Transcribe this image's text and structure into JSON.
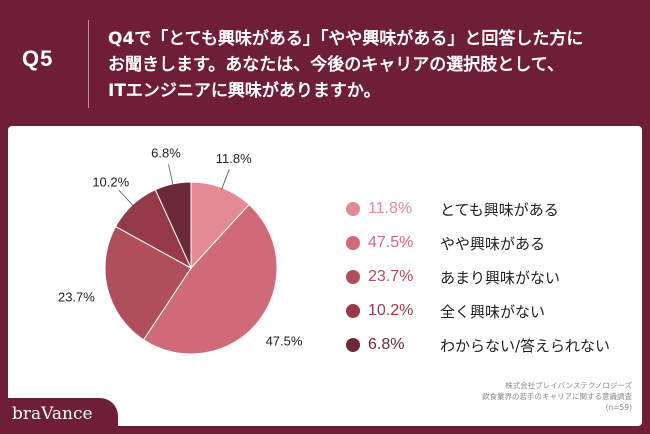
{
  "header": {
    "q_label": "Q5",
    "question_lines": [
      "Q4で「とても興味がある」「やや興味がある」と回答した方に",
      "お聞きします。あなたは、今後のキャリアの選択肢として、",
      "ITエンジニアに興味がありますか。"
    ]
  },
  "chart_data": {
    "type": "pie",
    "categories": [
      "とても興味がある",
      "やや興味がある",
      "あまり興味がない",
      "全く興味がない",
      "わからない/答えられない"
    ],
    "values": [
      11.8,
      47.5,
      23.7,
      10.2,
      6.8
    ],
    "value_labels": [
      "11.8%",
      "47.5%",
      "23.7%",
      "10.2%",
      "6.8%"
    ],
    "colors": [
      "#e38a92",
      "#cf6b78",
      "#b04e5c",
      "#963a4a",
      "#6b2a36"
    ],
    "start_angle_deg": 0,
    "direction": "clockwise",
    "legend_position": "right"
  },
  "source": {
    "lines": [
      "株式会社ブレイバンステクノロジーズ",
      "飲食業界の若手のキャリアに関する意識調査",
      "(n=59)"
    ]
  },
  "brand": {
    "name": "braVance"
  }
}
